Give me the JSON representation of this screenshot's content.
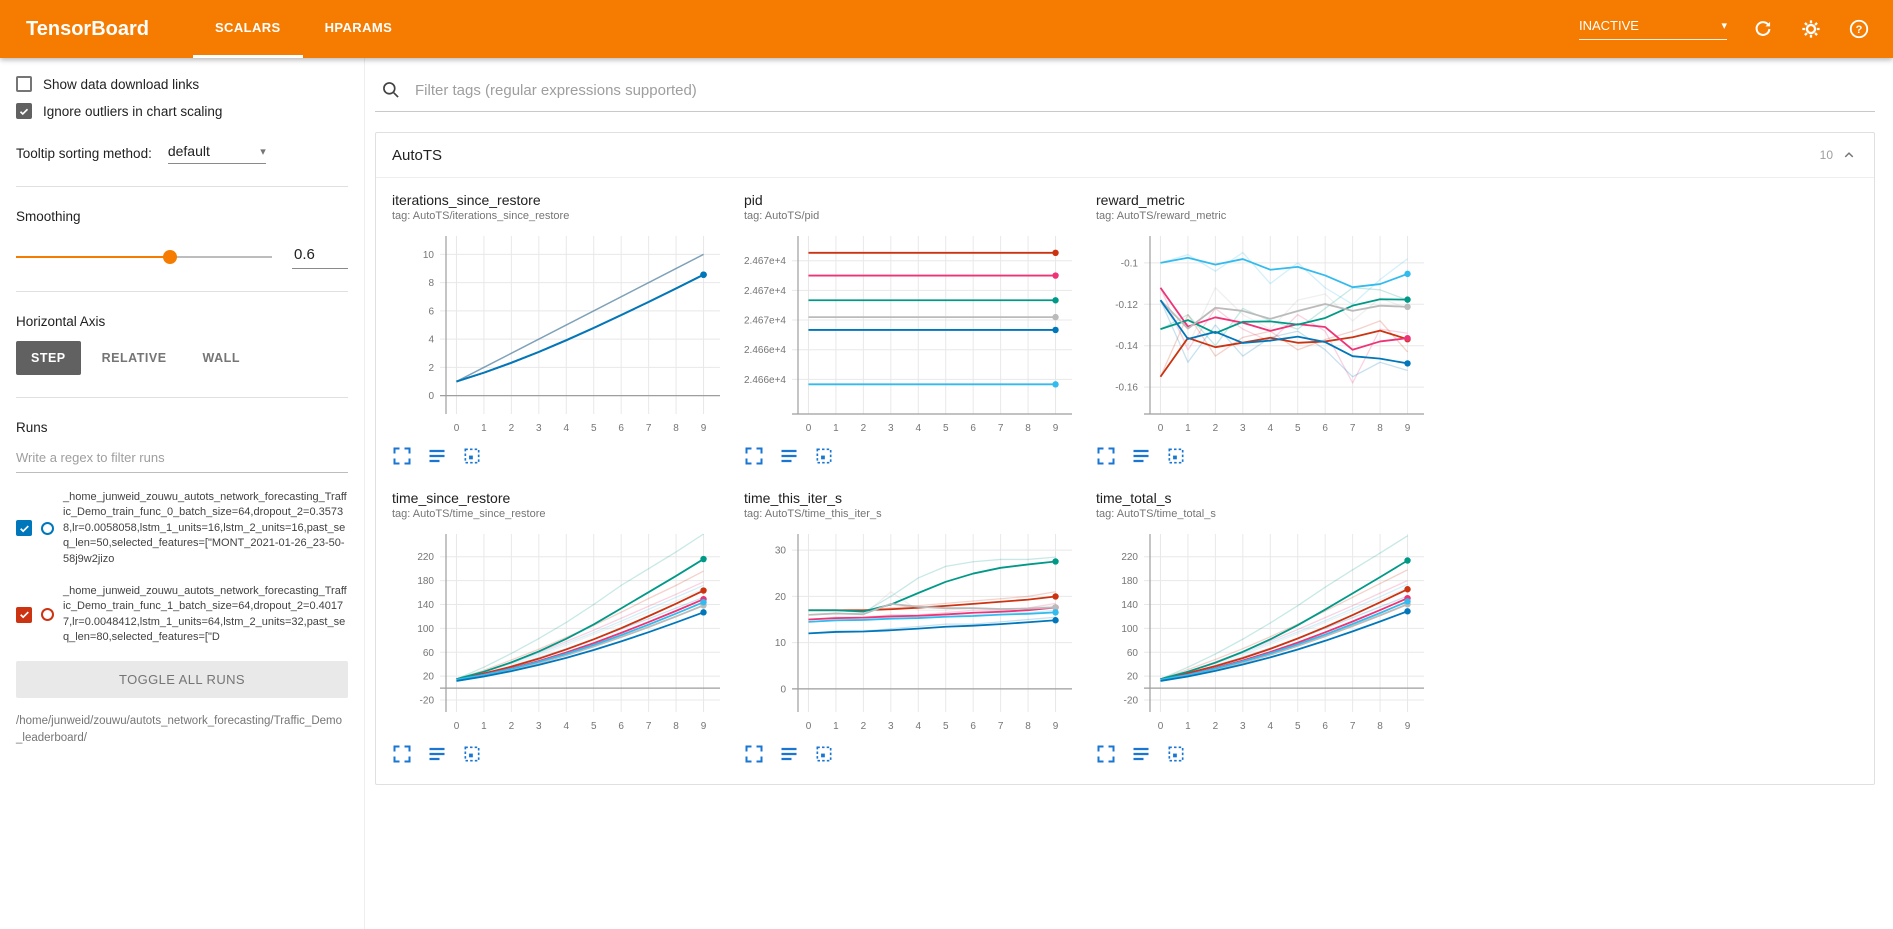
{
  "header": {
    "title": "TensorBoard",
    "tabs": [
      {
        "label": "SCALARS",
        "active": true
      },
      {
        "label": "HPARAMS",
        "active": false
      }
    ],
    "status": "INACTIVE"
  },
  "sidebar": {
    "checkboxes": [
      {
        "label": "Show data download links",
        "checked": false
      },
      {
        "label": "Ignore outliers in chart scaling",
        "checked": true
      }
    ],
    "tooltip_sort": {
      "label": "Tooltip sorting method:",
      "value": "default"
    },
    "smoothing": {
      "label": "Smoothing",
      "value": 0.6,
      "display": "0.6"
    },
    "horizontal_axis": {
      "label": "Horizontal Axis",
      "options": [
        "STEP",
        "RELATIVE",
        "WALL"
      ],
      "selected": "STEP"
    },
    "runs": {
      "label": "Runs",
      "filter_placeholder": "Write a regex to filter runs",
      "items": [
        {
          "color": "#0077bb",
          "checked": true,
          "label": "_home_junweid_zouwu_autots_network_forecasting_Traffic_Demo_train_func_0_batch_size=64,dropout_2=0.35738,lr=0.0058058,lstm_1_units=16,lstm_2_units=16,past_seq_len=50,selected_features=[\"MONT_2021-01-26_23-50-58j9w2jizo"
        },
        {
          "color": "#cc3311",
          "checked": true,
          "label": "_home_junweid_zouwu_autots_network_forecasting_Traffic_Demo_train_func_1_batch_size=64,dropout_2=0.40177,lr=0.0048412,lstm_1_units=64,lstm_2_units=32,past_seq_len=80,selected_features=[\"D"
        }
      ],
      "toggle_all_label": "TOGGLE ALL RUNS",
      "footer_path": "/home/junweid/zouwu/autots_network_forecasting/Traffic_Demo_leaderboard/"
    }
  },
  "main": {
    "filter_placeholder": "Filter tags (regular expressions supported)",
    "card": {
      "title": "AutoTS",
      "count": "10"
    }
  },
  "chart_data": [
    {
      "type": "line",
      "title": "iterations_since_restore",
      "tag_line": "tag: AutoTS/iterations_since_restore",
      "x": [
        0,
        1,
        2,
        3,
        4,
        5,
        6,
        7,
        8,
        9
      ],
      "xlim": [
        -0.6,
        9.6
      ],
      "ylim": [
        -1.3,
        11.3
      ],
      "xticks": [
        0,
        1,
        2,
        3,
        4,
        5,
        6,
        7,
        8,
        9
      ],
      "yticks": [
        {
          "v": 0,
          "label": "0"
        },
        {
          "v": 2,
          "label": "2"
        },
        {
          "v": 4,
          "label": "4"
        },
        {
          "v": 6,
          "label": "6"
        },
        {
          "v": 8,
          "label": "8"
        },
        {
          "v": 10,
          "label": "10"
        }
      ],
      "series": [
        {
          "color": "#cc3311",
          "values": [
            1,
            2,
            3,
            4,
            5,
            6,
            7,
            8,
            9,
            10
          ]
        },
        {
          "color": "#ee3377",
          "values": [
            1,
            2,
            3,
            4,
            5,
            6,
            7,
            8,
            9,
            10
          ]
        },
        {
          "color": "#009988",
          "values": [
            1,
            2,
            3,
            4,
            5,
            6,
            7,
            8,
            9,
            10
          ]
        },
        {
          "color": "#bbbbbb",
          "values": [
            1,
            2,
            3,
            4,
            5,
            6,
            7,
            8,
            9,
            10
          ]
        },
        {
          "color": "#33bbee",
          "values": [
            1,
            2,
            3,
            4,
            5,
            6,
            7,
            8,
            9,
            10
          ]
        },
        {
          "color": "#0077bb",
          "values": [
            1,
            2,
            3,
            4,
            5,
            6,
            7,
            8,
            9,
            10
          ]
        }
      ]
    },
    {
      "type": "line",
      "title": "pid",
      "tag_line": "tag: AutoTS/pid",
      "x": [
        0,
        1,
        2,
        3,
        4,
        5,
        6,
        7,
        8,
        9
      ],
      "xlim": [
        -0.6,
        9.6
      ],
      "ylim": [
        24656.5,
        24674.5
      ],
      "xticks": [
        0,
        1,
        2,
        3,
        4,
        5,
        6,
        7,
        8,
        9
      ],
      "yticks": [
        {
          "v": 24660,
          "label": "2.466e+4"
        },
        {
          "v": 24663,
          "label": "2.466e+4"
        },
        {
          "v": 24666,
          "label": "2.467e+4"
        },
        {
          "v": 24669,
          "label": "2.467e+4"
        },
        {
          "v": 24672,
          "label": "2.467e+4"
        }
      ],
      "series": [
        {
          "color": "#cc3311",
          "values": [
            24672.8,
            24672.8,
            24672.8,
            24672.8,
            24672.8,
            24672.8,
            24672.8,
            24672.8,
            24672.8,
            24672.8
          ]
        },
        {
          "color": "#ee3377",
          "values": [
            24670.5,
            24670.5,
            24670.5,
            24670.5,
            24670.5,
            24670.5,
            24670.5,
            24670.5,
            24670.5,
            24670.5
          ]
        },
        {
          "color": "#009988",
          "values": [
            24668,
            24668,
            24668,
            24668,
            24668,
            24668,
            24668,
            24668,
            24668,
            24668
          ]
        },
        {
          "color": "#bbbbbb",
          "values": [
            24666.3,
            24666.3,
            24666.3,
            24666.3,
            24666.3,
            24666.3,
            24666.3,
            24666.3,
            24666.3,
            24666.3
          ]
        },
        {
          "color": "#33bbee",
          "values": [
            24659.5,
            24659.5,
            24659.5,
            24659.5,
            24659.5,
            24659.5,
            24659.5,
            24659.5,
            24659.5,
            24659.5
          ]
        },
        {
          "color": "#0077bb",
          "values": [
            24665,
            24665,
            24665,
            24665,
            24665,
            24665,
            24665,
            24665,
            24665,
            24665
          ]
        }
      ]
    },
    {
      "type": "line",
      "title": "reward_metric",
      "tag_line": "tag: AutoTS/reward_metric",
      "x": [
        0,
        1,
        2,
        3,
        4,
        5,
        6,
        7,
        8,
        9
      ],
      "xlim": [
        -0.6,
        9.6
      ],
      "ylim": [
        -0.173,
        -0.087
      ],
      "xticks": [
        0,
        1,
        2,
        3,
        4,
        5,
        6,
        7,
        8,
        9
      ],
      "yticks": [
        {
          "v": -0.16,
          "label": "-0.16"
        },
        {
          "v": -0.14,
          "label": "-0.14"
        },
        {
          "v": -0.12,
          "label": "-0.12"
        },
        {
          "v": -0.1,
          "label": "-0.1"
        }
      ],
      "series": [
        {
          "color": "#cc3311",
          "values": [
            -0.155,
            -0.125,
            -0.145,
            -0.136,
            -0.133,
            -0.142,
            -0.137,
            -0.133,
            -0.128,
            -0.143
          ]
        },
        {
          "color": "#ee3377",
          "values": [
            -0.112,
            -0.142,
            -0.122,
            -0.132,
            -0.138,
            -0.125,
            -0.133,
            -0.158,
            -0.132,
            -0.134
          ]
        },
        {
          "color": "#009988",
          "values": [
            -0.132,
            -0.125,
            -0.14,
            -0.122,
            -0.128,
            -0.132,
            -0.122,
            -0.112,
            -0.113,
            -0.118
          ]
        },
        {
          "color": "#bbbbbb",
          "values": [
            -0.118,
            -0.14,
            -0.112,
            -0.125,
            -0.132,
            -0.118,
            -0.115,
            -0.128,
            -0.117,
            -0.122
          ]
        },
        {
          "color": "#33bbee",
          "values": [
            -0.1,
            -0.096,
            -0.104,
            -0.095,
            -0.11,
            -0.1,
            -0.112,
            -0.12,
            -0.108,
            -0.098
          ]
        },
        {
          "color": "#0077bb",
          "values": [
            -0.118,
            -0.148,
            -0.13,
            -0.145,
            -0.136,
            -0.133,
            -0.142,
            -0.155,
            -0.148,
            -0.152
          ]
        }
      ]
    },
    {
      "type": "line",
      "title": "time_since_restore",
      "tag_line": "tag: AutoTS/time_since_restore",
      "x": [
        0,
        1,
        2,
        3,
        4,
        5,
        6,
        7,
        8,
        9
      ],
      "xlim": [
        -0.6,
        9.6
      ],
      "ylim": [
        -40,
        258
      ],
      "xticks": [
        0,
        1,
        2,
        3,
        4,
        5,
        6,
        7,
        8,
        9
      ],
      "yticks": [
        {
          "v": -20,
          "label": "-20"
        },
        {
          "v": 20,
          "label": "20"
        },
        {
          "v": 60,
          "label": "60"
        },
        {
          "v": 100,
          "label": "100"
        },
        {
          "v": 140,
          "label": "140"
        },
        {
          "v": 180,
          "label": "180"
        },
        {
          "v": 220,
          "label": "220"
        }
      ],
      "series": [
        {
          "color": "#cc3311",
          "values": [
            15,
            30,
            47,
            65,
            85,
            105,
            127,
            150,
            172,
            196
          ]
        },
        {
          "color": "#ee3377",
          "values": [
            14,
            28,
            43,
            60,
            78,
            97,
            117,
            137,
            157,
            178
          ]
        },
        {
          "color": "#009988",
          "values": [
            15,
            35,
            58,
            83,
            110,
            140,
            172,
            200,
            228,
            258
          ]
        },
        {
          "color": "#bbbbbb",
          "values": [
            13,
            26,
            40,
            55,
            72,
            90,
            108,
            127,
            146,
            166
          ]
        },
        {
          "color": "#33bbee",
          "values": [
            14,
            27,
            42,
            58,
            75,
            93,
            112,
            132,
            152,
            172
          ]
        },
        {
          "color": "#0077bb",
          "values": [
            12,
            24,
            37,
            51,
            66,
            82,
            99,
            116,
            134,
            152
          ]
        }
      ]
    },
    {
      "type": "line",
      "title": "time_this_iter_s",
      "tag_line": "tag: AutoTS/time_this_iter_s",
      "x": [
        0,
        1,
        2,
        3,
        4,
        5,
        6,
        7,
        8,
        9
      ],
      "xlim": [
        -0.6,
        9.6
      ],
      "ylim": [
        -5,
        33.5
      ],
      "xticks": [
        0,
        1,
        2,
        3,
        4,
        5,
        6,
        7,
        8,
        9
      ],
      "yticks": [
        {
          "v": 0,
          "label": "0"
        },
        {
          "v": 10,
          "label": "10"
        },
        {
          "v": 20,
          "label": "20"
        },
        {
          "v": 30,
          "label": "30"
        }
      ],
      "series": [
        {
          "color": "#cc3311",
          "values": [
            17,
            17,
            17,
            17.5,
            18,
            18.5,
            19,
            19.5,
            20,
            21
          ]
        },
        {
          "color": "#ee3377",
          "values": [
            15,
            15.5,
            15.5,
            16,
            16,
            16.5,
            17,
            17,
            17.5,
            18.5
          ]
        },
        {
          "color": "#009988",
          "values": [
            17,
            17,
            16.5,
            20,
            24,
            26.5,
            27.5,
            28,
            28,
            28.5
          ]
        },
        {
          "color": "#bbbbbb",
          "values": [
            16,
            16.5,
            16,
            21,
            17,
            17,
            17.5,
            17,
            17.5,
            18
          ]
        },
        {
          "color": "#33bbee",
          "values": [
            14.5,
            15,
            15,
            15.5,
            15.5,
            16,
            16,
            16.5,
            16.5,
            17
          ]
        },
        {
          "color": "#0077bb",
          "values": [
            12,
            12.5,
            12.5,
            13,
            13.5,
            14,
            14,
            14.5,
            15,
            15.5
          ]
        }
      ]
    },
    {
      "type": "line",
      "title": "time_total_s",
      "tag_line": "tag: AutoTS/time_total_s",
      "x": [
        0,
        1,
        2,
        3,
        4,
        5,
        6,
        7,
        8,
        9
      ],
      "xlim": [
        -0.6,
        9.6
      ],
      "ylim": [
        -40,
        258
      ],
      "xticks": [
        0,
        1,
        2,
        3,
        4,
        5,
        6,
        7,
        8,
        9
      ],
      "yticks": [
        {
          "v": -20,
          "label": "-20"
        },
        {
          "v": 20,
          "label": "20"
        },
        {
          "v": 60,
          "label": "60"
        },
        {
          "v": 100,
          "label": "100"
        },
        {
          "v": 140,
          "label": "140"
        },
        {
          "v": 180,
          "label": "180"
        },
        {
          "v": 220,
          "label": "220"
        }
      ],
      "series": [
        {
          "color": "#cc3311",
          "values": [
            15,
            31,
            48,
            66,
            86,
            107,
            129,
            152,
            175,
            198
          ]
        },
        {
          "color": "#ee3377",
          "values": [
            14,
            28,
            44,
            61,
            79,
            98,
            118,
            138,
            159,
            180
          ]
        },
        {
          "color": "#009988",
          "values": [
            15,
            35,
            57,
            82,
            109,
            138,
            169,
            198,
            226,
            255
          ]
        },
        {
          "color": "#bbbbbb",
          "values": [
            13,
            26,
            41,
            56,
            73,
            91,
            110,
            129,
            148,
            168
          ]
        },
        {
          "color": "#33bbee",
          "values": [
            14,
            27,
            43,
            59,
            76,
            94,
            113,
            133,
            153,
            174
          ]
        },
        {
          "color": "#0077bb",
          "values": [
            12,
            24,
            38,
            52,
            67,
            83,
            100,
            118,
            136,
            154
          ]
        }
      ]
    }
  ]
}
